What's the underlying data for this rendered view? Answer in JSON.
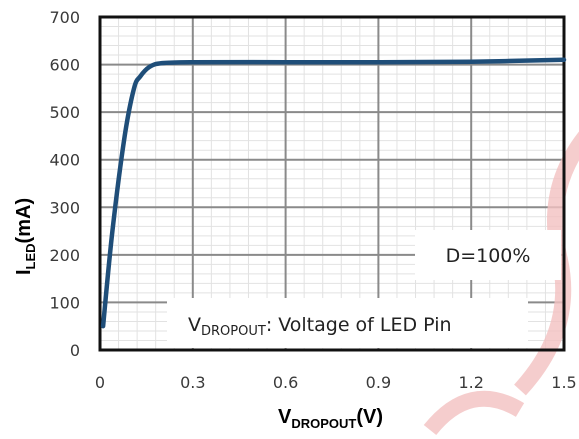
{
  "chart_data": {
    "type": "line",
    "xlabel": {
      "main": "V",
      "sub": "DROPOUT",
      "suffix": "(V)"
    },
    "ylabel": {
      "main": "I",
      "sub": "LED",
      "suffix": "(mA)"
    },
    "xlim": [
      0,
      1.5
    ],
    "ylim": [
      0,
      700
    ],
    "x_ticks": [
      "0",
      "0.3",
      "0.6",
      "0.9",
      "1.2",
      "1.5"
    ],
    "y_ticks": [
      "0",
      "100",
      "200",
      "300",
      "400",
      "500",
      "600",
      "700"
    ],
    "grid": true,
    "series": [
      {
        "color": "#1f4e79",
        "points": [
          [
            0.01,
            50
          ],
          [
            0.04,
            250
          ],
          [
            0.08,
            450
          ],
          [
            0.11,
            550
          ],
          [
            0.13,
            575
          ],
          [
            0.16,
            595
          ],
          [
            0.2,
            603
          ],
          [
            0.3,
            605
          ],
          [
            0.6,
            605
          ],
          [
            0.9,
            605
          ],
          [
            1.2,
            606
          ],
          [
            1.5,
            610
          ]
        ]
      }
    ],
    "annotations": [
      {
        "text": "D=100%"
      },
      {
        "main": "V",
        "sub": "DROPOUT",
        "suffix": ": Voltage of LED Pin"
      }
    ]
  }
}
